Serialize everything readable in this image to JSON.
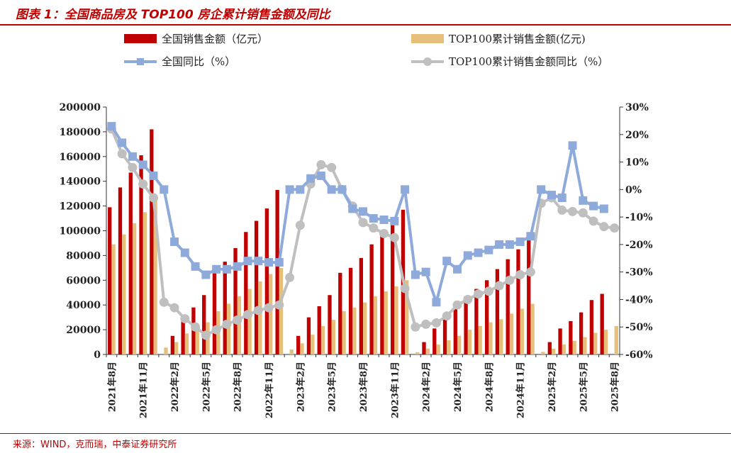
{
  "header": {
    "title": "图表 1：全国商品房及 TOP100 房企累计销售金额及同比"
  },
  "footer": {
    "source": "来源：WIND，克而瑞，中泰证券研究所"
  },
  "colors": {
    "national_amount": "#c00000",
    "top100_amount": "#e6c07b",
    "national_yoy": "#8eaadb",
    "top100_yoy": "#bfbfbf",
    "accent": "#c00000"
  },
  "chart_data": {
    "type": "bar+line",
    "title": "全国商品房及 TOP100 房企累计销售金额及同比",
    "legend": [
      {
        "key": "national_amount",
        "label": "全国销售金额（亿元）",
        "kind": "bar"
      },
      {
        "key": "top100_amount",
        "label": "TOP100累计销售金额(亿元)",
        "kind": "bar"
      },
      {
        "key": "national_yoy",
        "label": "全国同比（%）",
        "kind": "line"
      },
      {
        "key": "top100_yoy",
        "label": "TOP100累计销售金额同比（%）",
        "kind": "line"
      }
    ],
    "categories": [
      "2021年8月",
      "2021年9月",
      "2021年10月",
      "2021年11月",
      "2021年12月",
      "2022年1月",
      "2022年2月",
      "2022年3月",
      "2022年4月",
      "2022年5月",
      "2022年6月",
      "2022年7月",
      "2022年8月",
      "2022年9月",
      "2022年10月",
      "2022年11月",
      "2022年12月",
      "2023年1月",
      "2023年2月",
      "2023年3月",
      "2023年4月",
      "2023年5月",
      "2023年6月",
      "2023年7月",
      "2023年8月",
      "2023年9月",
      "2023年10月",
      "2023年11月",
      "2023年12月",
      "2024年1月",
      "2024年2月",
      "2024年3月",
      "2024年4月",
      "2024年5月",
      "2024年6月",
      "2024年7月",
      "2024年8月",
      "2024年9月",
      "2024年10月",
      "2024年11月",
      "2024年12月",
      "2025年1月",
      "2025年2月",
      "2025年3月",
      "2025年4月",
      "2025年5月",
      "2025年6月",
      "2025年7月",
      "2025年8月"
    ],
    "x_tick_labels": [
      {
        "index": 0,
        "label": "2021年8月"
      },
      {
        "index": 3,
        "label": "2021年11月"
      },
      {
        "index": 6,
        "label": "2022年2月"
      },
      {
        "index": 9,
        "label": "2022年5月"
      },
      {
        "index": 12,
        "label": "2022年8月"
      },
      {
        "index": 15,
        "label": "2022年11月"
      },
      {
        "index": 18,
        "label": "2023年2月"
      },
      {
        "index": 21,
        "label": "2023年5月"
      },
      {
        "index": 24,
        "label": "2023年8月"
      },
      {
        "index": 27,
        "label": "2023年11月"
      },
      {
        "index": 30,
        "label": "2024年2月"
      },
      {
        "index": 33,
        "label": "2024年5月"
      },
      {
        "index": 36,
        "label": "2024年8月"
      },
      {
        "index": 39,
        "label": "2024年11月"
      },
      {
        "index": 42,
        "label": "2025年2月"
      },
      {
        "index": 45,
        "label": "2025年5月"
      },
      {
        "index": 48,
        "label": "2025年8月"
      }
    ],
    "y_left": {
      "min": 0,
      "max": 200000,
      "step": 20000,
      "tick_labels": [
        "0",
        "20000",
        "40000",
        "60000",
        "80000",
        "100000",
        "120000",
        "140000",
        "160000",
        "180000",
        "200000"
      ]
    },
    "y_right": {
      "min": -60,
      "max": 30,
      "step": 10,
      "tick_labels": [
        "-60%",
        "-50%",
        "-40%",
        "-30%",
        "-20%",
        "-10%",
        "0%",
        "10%",
        "20%",
        "30%"
      ]
    },
    "series": [
      {
        "key": "national_amount",
        "name": "全国销售金额（亿元）",
        "type": "bar",
        "axis": "left",
        "values": [
          119000,
          135000,
          147000,
          161000,
          182000,
          null,
          15000,
          30000,
          38000,
          48000,
          66000,
          75000,
          86000,
          99000,
          108000,
          118000,
          133000,
          null,
          15000,
          30000,
          39000,
          48000,
          66000,
          70000,
          78000,
          89000,
          97000,
          105000,
          117000,
          null,
          10000,
          21000,
          30000,
          37000,
          47000,
          53000,
          60000,
          69000,
          77000,
          85000,
          97000,
          null,
          10000,
          21000,
          27000,
          34000,
          44000,
          49000,
          null
        ]
      },
      {
        "key": "top100_amount",
        "name": "TOP100累计销售金额(亿元)",
        "type": "bar",
        "axis": "left",
        "values": [
          89000,
          97000,
          106000,
          115000,
          127000,
          5600,
          10000,
          17000,
          21000,
          26000,
          35000,
          41000,
          47000,
          53000,
          59000,
          65000,
          70000,
          4000,
          9000,
          16000,
          23000,
          28000,
          35000,
          38000,
          42000,
          47000,
          51000,
          55000,
          60000,
          1800,
          4800,
          8000,
          11500,
          15000,
          20000,
          23000,
          26000,
          28500,
          33000,
          37000,
          41000,
          2100,
          4700,
          8000,
          11000,
          14000,
          17500,
          20000,
          23000
        ]
      },
      {
        "key": "national_yoy",
        "name": "全国同比（%）",
        "type": "line",
        "axis": "right",
        "marker": "square",
        "values": [
          23,
          17,
          12,
          9,
          5,
          0,
          -19,
          -23,
          -28,
          -31,
          -29,
          -29,
          -28,
          -26,
          -26,
          -26.5,
          -26.5,
          0,
          0,
          4,
          5,
          0,
          0,
          -7,
          -8,
          -10.5,
          -11,
          -11.5,
          0,
          -31,
          -30,
          -41,
          -26,
          -29,
          -24,
          -23,
          -22,
          -20,
          -20,
          -19,
          -17,
          0,
          -2,
          -3,
          16,
          -4,
          -6,
          -7,
          null
        ]
      },
      {
        "key": "top100_yoy",
        "name": "TOP100累计销售金额同比（%）",
        "type": "line",
        "axis": "right",
        "marker": "circle",
        "values": [
          22,
          13,
          8,
          2,
          -3,
          -41,
          -43,
          -47,
          -50,
          -53,
          -51,
          -49,
          -47.5,
          -45.5,
          -44,
          -43,
          -42,
          -32,
          -13,
          2,
          9,
          8,
          0,
          -6,
          -12,
          -14,
          -16,
          -17.5,
          -36,
          -50,
          -49,
          -48.5,
          -46,
          -42,
          -40,
          -38,
          -37,
          -35,
          -33,
          -31,
          -30,
          -5,
          -3,
          -7.5,
          -8,
          -8.5,
          -11.5,
          -13.5,
          -14
        ]
      }
    ]
  }
}
